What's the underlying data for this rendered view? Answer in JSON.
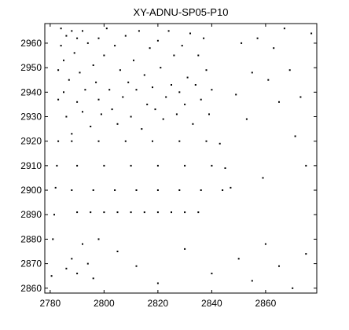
{
  "chart_data": {
    "type": "scatter",
    "title": "XY-ADNU-SP05-P10",
    "xlabel": "",
    "ylabel": "",
    "xlim": [
      2778,
      2879
    ],
    "ylim": [
      2858,
      2968
    ],
    "xticks": [
      2780,
      2800,
      2820,
      2840,
      2860
    ],
    "yticks": [
      2860,
      2870,
      2880,
      2890,
      2900,
      2910,
      2920,
      2930,
      2940,
      2950,
      2960
    ],
    "grid": false,
    "legend": "none",
    "marker_color": "#000000",
    "description_of_points": "Recurrence-plot style binary scatter: dense black points in blocks over x 2784-2828, y 2922-2966, and x 2828-2840, y 2922-2966; sparse horizontal bands near y 2890, 2900, 2910, 2920; vertical bands near x 2843-2878",
    "series": [
      {
        "points": [
          [
            2780.5,
            2865
          ],
          [
            2781,
            2880
          ],
          [
            2781.5,
            2890
          ],
          [
            2782,
            2901
          ],
          [
            2782.5,
            2910
          ],
          [
            2783,
            2920
          ],
          [
            2783,
            2949
          ],
          [
            2783,
            2937
          ],
          [
            2784,
            2959
          ],
          [
            2784,
            2966
          ],
          [
            2785,
            2940
          ],
          [
            2785,
            2953
          ],
          [
            2786,
            2963
          ],
          [
            2786,
            2930
          ],
          [
            2787,
            2945
          ],
          [
            2788,
            2965
          ],
          [
            2788,
            2923
          ],
          [
            2789,
            2956
          ],
          [
            2790,
            2936
          ],
          [
            2790,
            2962
          ],
          [
            2791,
            2948
          ],
          [
            2792,
            2932
          ],
          [
            2792,
            2965
          ],
          [
            2793,
            2941
          ],
          [
            2794,
            2960
          ],
          [
            2795,
            2926
          ],
          [
            2796,
            2951
          ],
          [
            2797,
            2944
          ],
          [
            2798,
            2937
          ],
          [
            2798,
            2962
          ],
          [
            2799,
            2931
          ],
          [
            2800,
            2955
          ],
          [
            2801,
            2966
          ],
          [
            2802,
            2941
          ],
          [
            2803,
            2933
          ],
          [
            2804,
            2959
          ],
          [
            2805,
            2927
          ],
          [
            2806,
            2949
          ],
          [
            2807,
            2938
          ],
          [
            2808,
            2963
          ],
          [
            2809,
            2944
          ],
          [
            2810,
            2930
          ],
          [
            2811,
            2953
          ],
          [
            2812,
            2941
          ],
          [
            2813,
            2965
          ],
          [
            2814,
            2925
          ],
          [
            2815,
            2947
          ],
          [
            2816,
            2935
          ],
          [
            2817,
            2958
          ],
          [
            2818,
            2942
          ],
          [
            2819,
            2933
          ],
          [
            2820,
            2961
          ],
          [
            2821,
            2950
          ],
          [
            2822,
            2929
          ],
          [
            2823,
            2938
          ],
          [
            2824,
            2965
          ],
          [
            2825,
            2943
          ],
          [
            2826,
            2955
          ],
          [
            2827,
            2931
          ],
          [
            2828,
            2940
          ],
          [
            2829,
            2959
          ],
          [
            2830,
            2935
          ],
          [
            2831,
            2946
          ],
          [
            2832,
            2964
          ],
          [
            2833,
            2927
          ],
          [
            2834,
            2943
          ],
          [
            2835,
            2955
          ],
          [
            2836,
            2937
          ],
          [
            2837,
            2962
          ],
          [
            2838,
            2949
          ],
          [
            2839,
            2931
          ],
          [
            2840,
            2941
          ],
          [
            2843,
            2919
          ],
          [
            2845,
            2909
          ],
          [
            2847,
            2901
          ],
          [
            2849,
            2939
          ],
          [
            2851,
            2960
          ],
          [
            2853,
            2929
          ],
          [
            2855,
            2948
          ],
          [
            2857,
            2962
          ],
          [
            2859,
            2905
          ],
          [
            2861,
            2945
          ],
          [
            2863,
            2958
          ],
          [
            2865,
            2936
          ],
          [
            2867,
            2966
          ],
          [
            2869,
            2949
          ],
          [
            2871,
            2922
          ],
          [
            2873,
            2938
          ],
          [
            2875,
            2910
          ],
          [
            2877,
            2964
          ],
          [
            2790,
            2891
          ],
          [
            2795,
            2891
          ],
          [
            2800,
            2891
          ],
          [
            2805,
            2891
          ],
          [
            2810,
            2891
          ],
          [
            2815,
            2891
          ],
          [
            2820,
            2891
          ],
          [
            2825,
            2891
          ],
          [
            2830,
            2891
          ],
          [
            2835,
            2891
          ],
          [
            2788,
            2900
          ],
          [
            2796,
            2900
          ],
          [
            2804,
            2900
          ],
          [
            2812,
            2900
          ],
          [
            2820,
            2900
          ],
          [
            2828,
            2900
          ],
          [
            2836,
            2900
          ],
          [
            2844,
            2900
          ],
          [
            2790,
            2910
          ],
          [
            2800,
            2910
          ],
          [
            2810,
            2910
          ],
          [
            2820,
            2910
          ],
          [
            2830,
            2910
          ],
          [
            2840,
            2910
          ],
          [
            2788,
            2920
          ],
          [
            2798,
            2920
          ],
          [
            2808,
            2920
          ],
          [
            2818,
            2920
          ],
          [
            2828,
            2920
          ],
          [
            2838,
            2920
          ],
          [
            2786,
            2868
          ],
          [
            2788,
            2872
          ],
          [
            2790,
            2866
          ],
          [
            2792,
            2878
          ],
          [
            2794,
            2870
          ],
          [
            2796,
            2864
          ],
          [
            2798,
            2880
          ],
          [
            2805,
            2875
          ],
          [
            2812,
            2869
          ],
          [
            2820,
            2862
          ],
          [
            2830,
            2876
          ],
          [
            2840,
            2866
          ],
          [
            2850,
            2872
          ],
          [
            2855,
            2863
          ],
          [
            2860,
            2878
          ],
          [
            2865,
            2869
          ],
          [
            2870,
            2860
          ],
          [
            2875,
            2874
          ]
        ]
      }
    ]
  }
}
